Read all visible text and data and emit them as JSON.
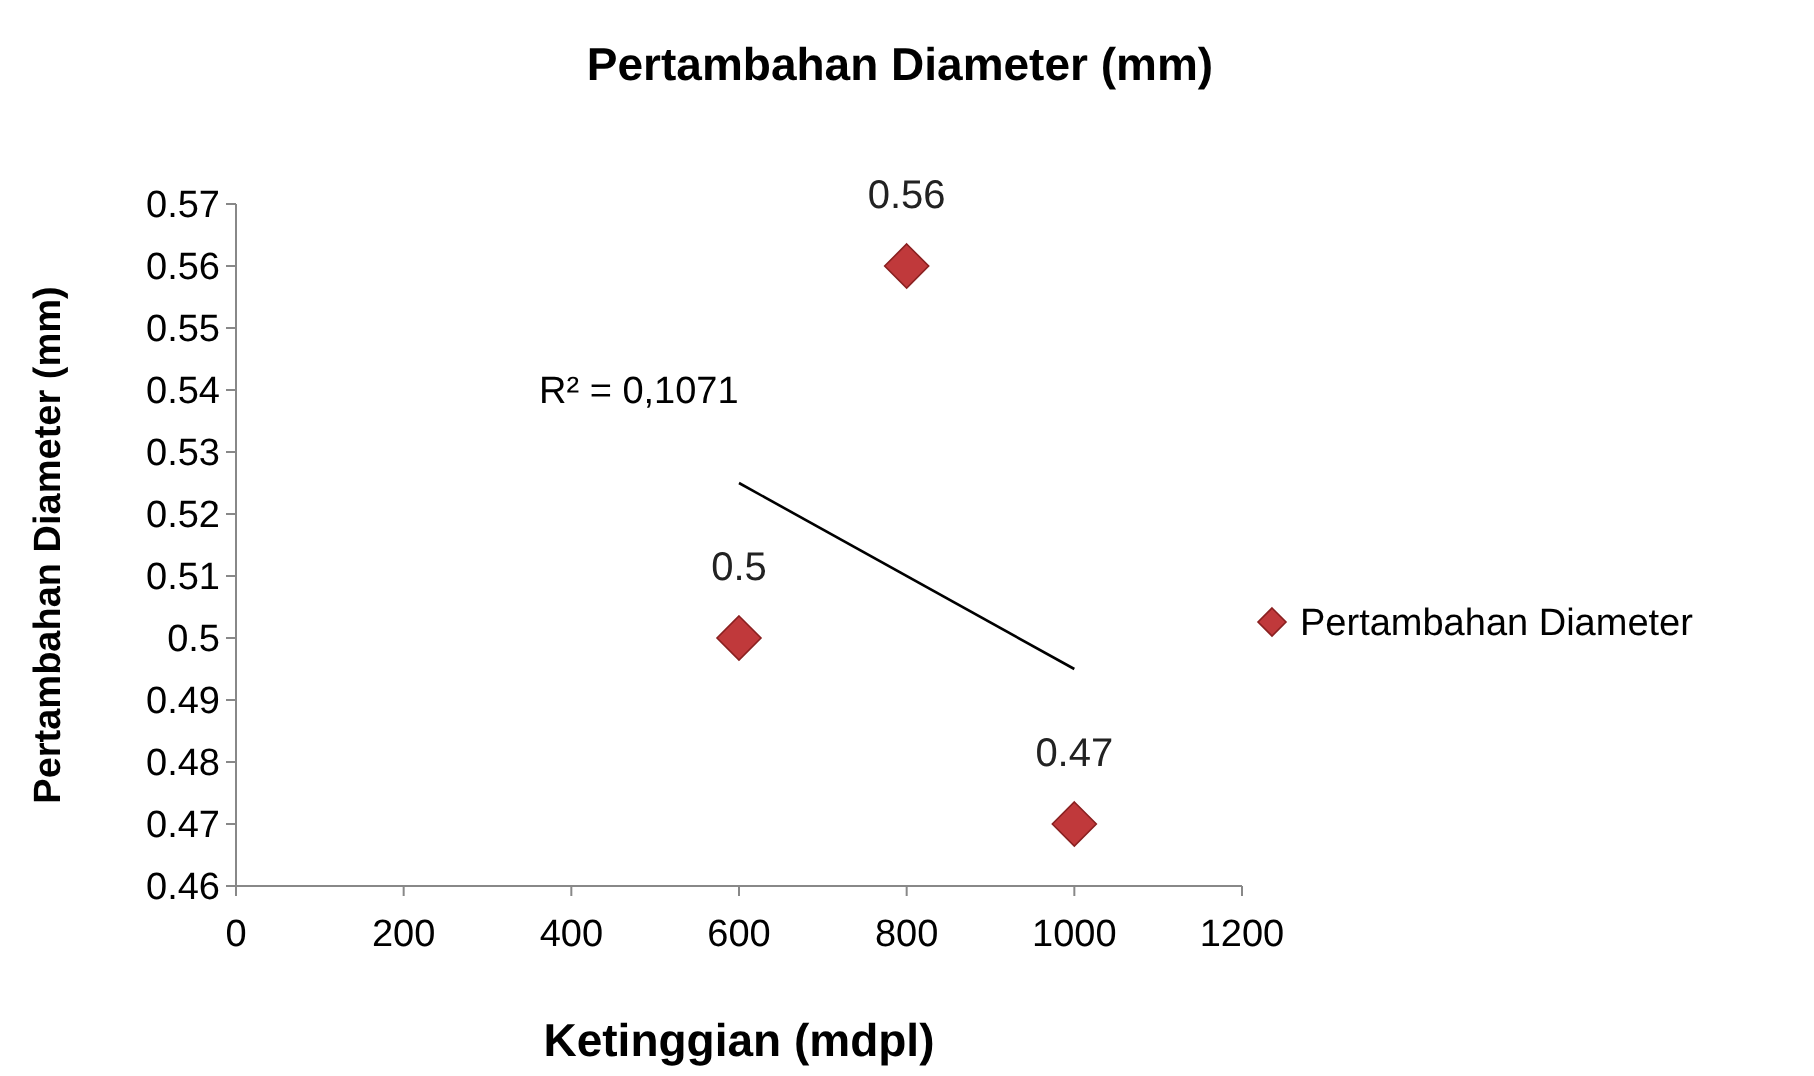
{
  "chart_data": {
    "type": "scatter",
    "title": "Pertambahan Diameter (mm)",
    "xlabel": "Ketinggian (mdpl)",
    "ylabel": "Pertambahan Diameter (mm)",
    "xlim": [
      0,
      1200
    ],
    "xticks": [
      0,
      200,
      400,
      600,
      800,
      1000,
      1200
    ],
    "ylim": [
      0.46,
      0.57
    ],
    "yticks": [
      0.46,
      0.47,
      0.48,
      0.49,
      0.5,
      0.51,
      0.52,
      0.53,
      0.54,
      0.55,
      0.56,
      0.57
    ],
    "legend": "right",
    "grid": false,
    "annotations": [
      "R² = 0,1071"
    ],
    "series": [
      {
        "name": "Pertambahan Diameter",
        "color": "#c0393b",
        "marker": "diamond",
        "x": [
          600,
          800,
          1000
        ],
        "values": [
          0.5,
          0.56,
          0.47
        ],
        "value_labels": [
          "0.5",
          "0.56",
          "0.47"
        ]
      },
      {
        "type": "line",
        "color": "#000000",
        "x": [
          600,
          1000
        ],
        "values": [
          0.525,
          0.495
        ]
      }
    ]
  }
}
